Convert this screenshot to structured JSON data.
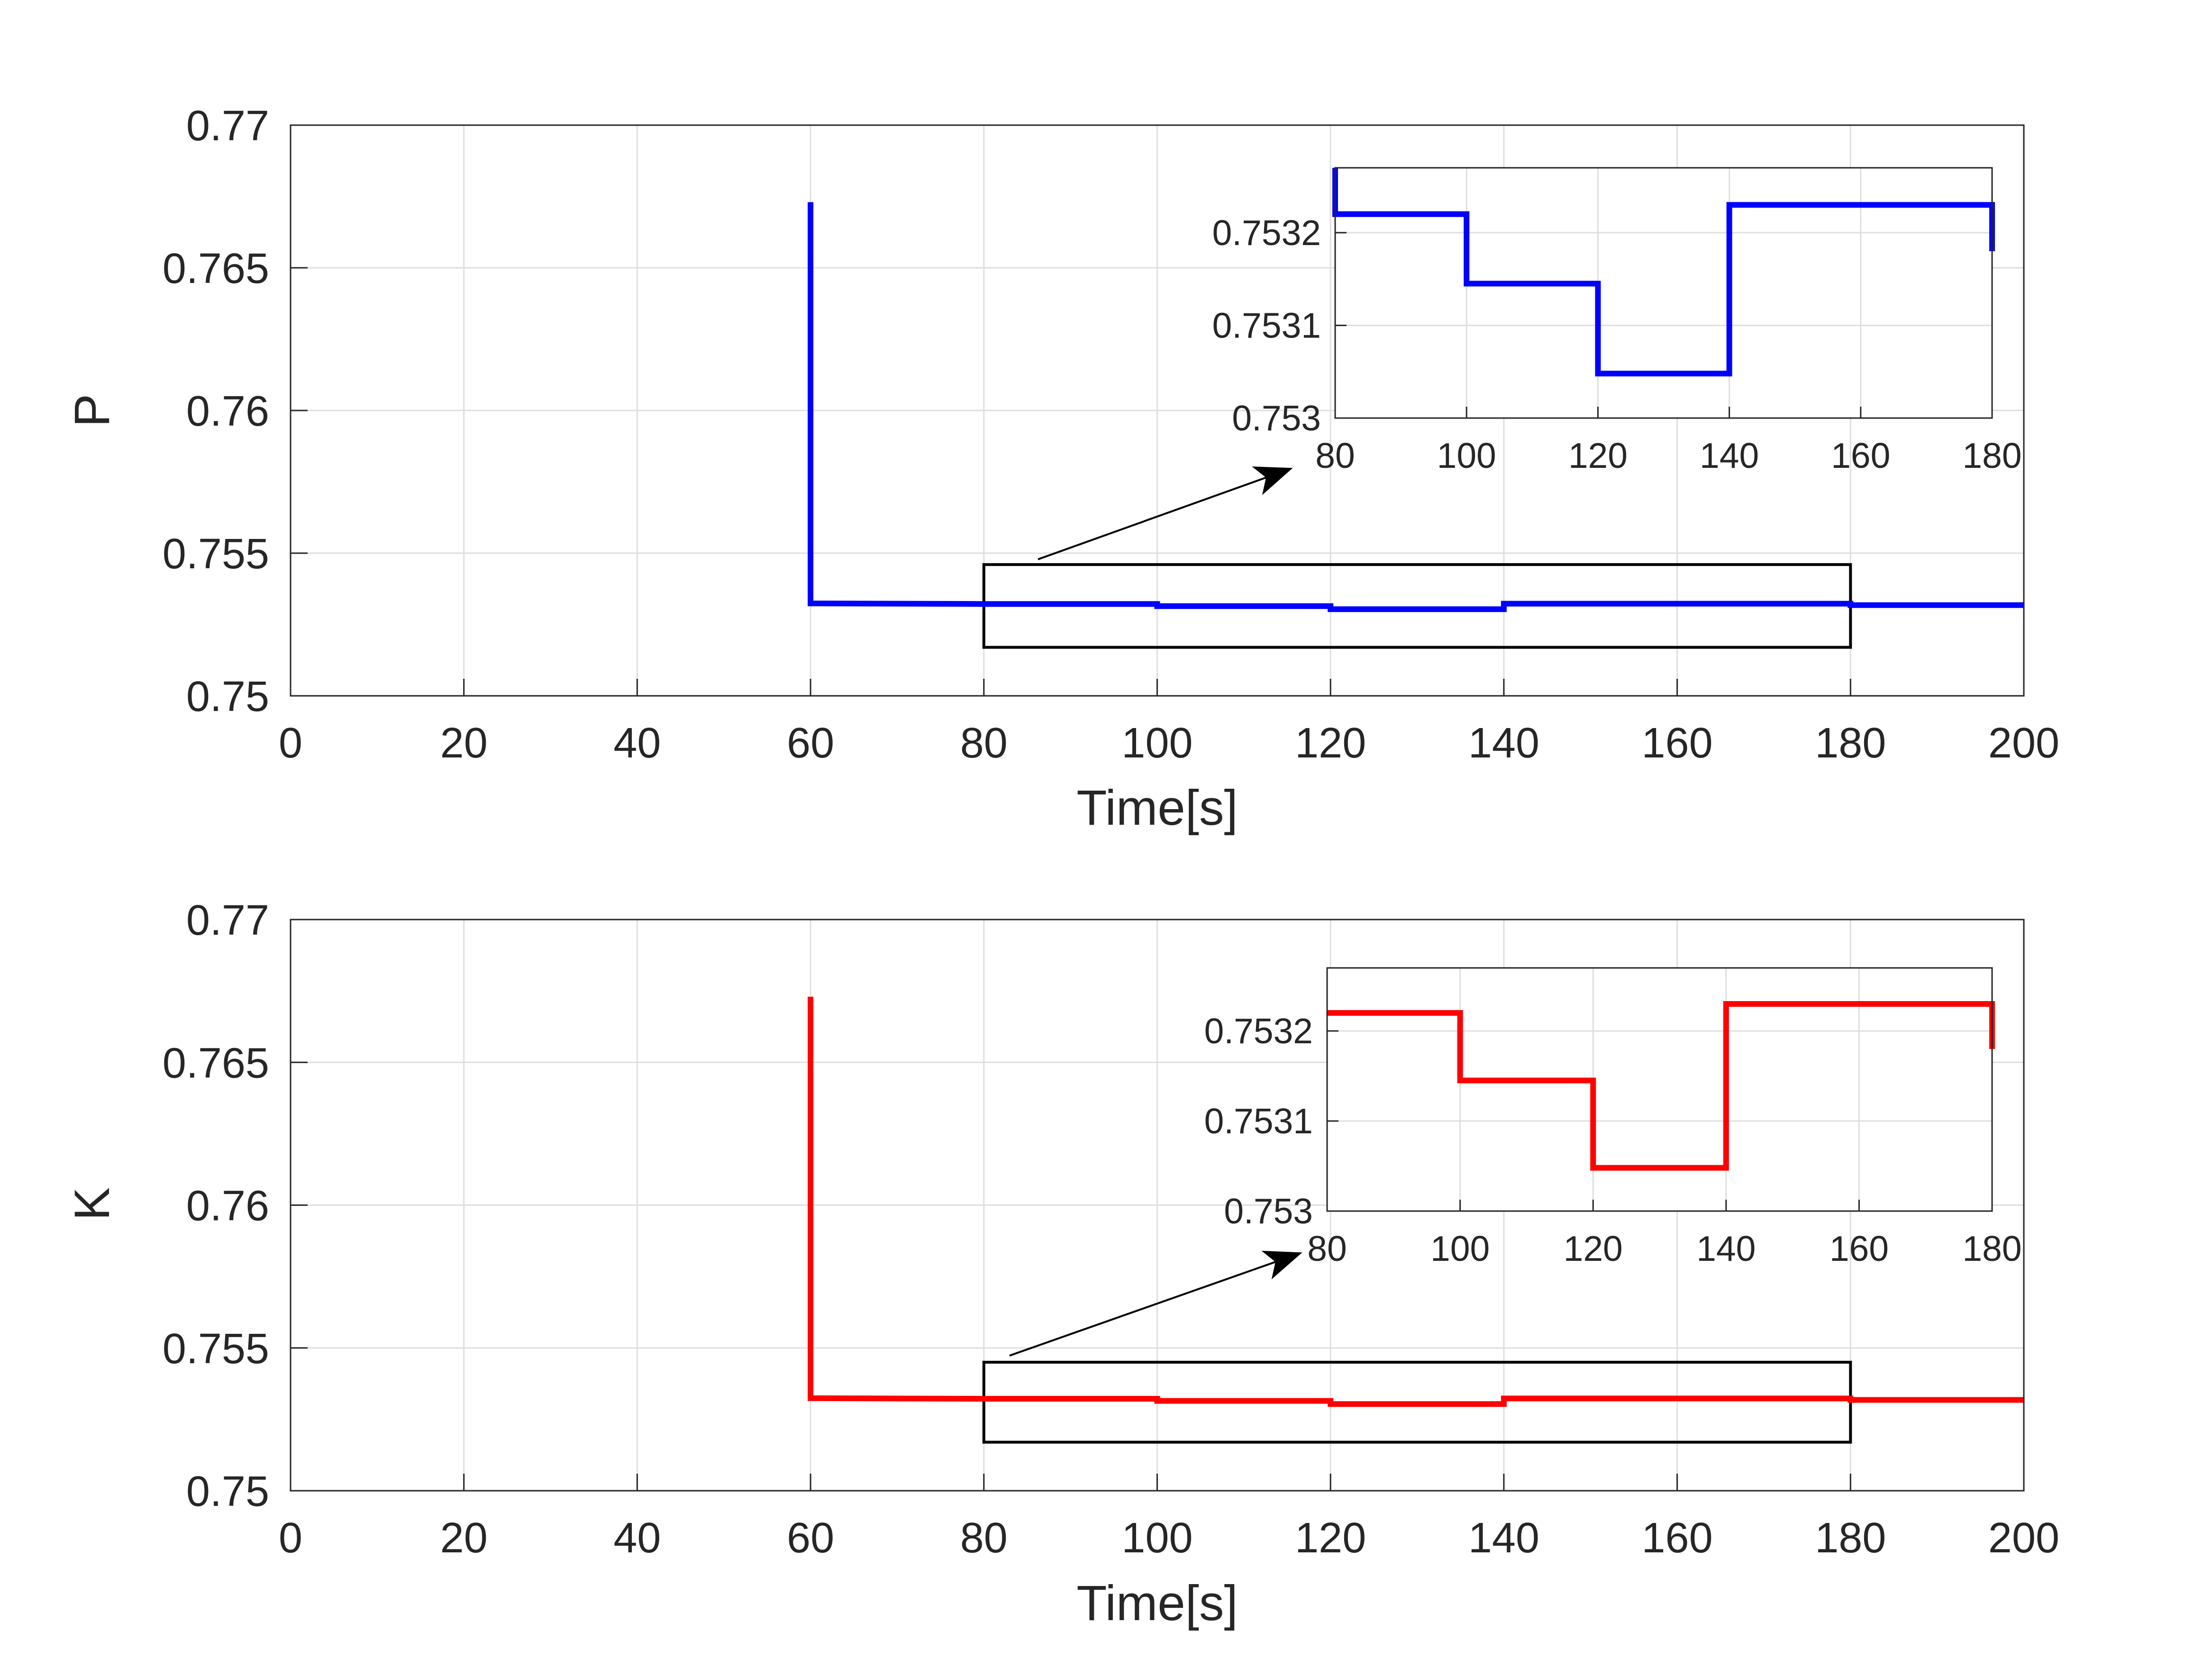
{
  "chart_data": [
    {
      "type": "line",
      "ylabel": "P",
      "xlabel": "Time[s]",
      "xlim": [
        0,
        200
      ],
      "ylim": [
        0.75,
        0.77
      ],
      "xticks": [
        "0",
        "20",
        "40",
        "60",
        "80",
        "100",
        "120",
        "140",
        "160",
        "180",
        "200"
      ],
      "yticks": [
        "0.75",
        "0.755",
        "0.76",
        "0.765",
        "0.77"
      ],
      "grid": true,
      "color": "#0000ff",
      "series": [
        {
          "name": "P",
          "x": [
            60,
            60,
            80,
            100,
            100,
            120,
            120,
            140,
            140,
            180,
            180,
            200
          ],
          "y": [
            0.7673,
            0.75324,
            0.75322,
            0.75322,
            0.753145,
            0.753145,
            0.753035,
            0.753035,
            0.75323,
            0.75323,
            0.75318,
            0.75318
          ]
        }
      ],
      "zoom_box": {
        "x": [
          80,
          180
        ],
        "y": [
          0.7517,
          0.7546
        ]
      },
      "inset": {
        "xlim": [
          80,
          180
        ],
        "ylim": [
          0.753,
          0.75327
        ],
        "xticks": [
          "80",
          "100",
          "120",
          "140",
          "160",
          "180"
        ],
        "yticks": [
          "0.753",
          "0.7531",
          "0.7532"
        ],
        "series_x": [
          80,
          80,
          100,
          100,
          120,
          120,
          140,
          140,
          180,
          180
        ],
        "series_y": [
          0.75327,
          0.75322,
          0.75322,
          0.753145,
          0.753145,
          0.753048,
          0.753048,
          0.75323,
          0.75323,
          0.75318
        ]
      }
    },
    {
      "type": "line",
      "ylabel": "K",
      "xlabel": "Time[s]",
      "xlim": [
        0,
        200
      ],
      "ylim": [
        0.75,
        0.77
      ],
      "xticks": [
        "0",
        "20",
        "40",
        "60",
        "80",
        "100",
        "120",
        "140",
        "160",
        "180",
        "200"
      ],
      "yticks": [
        "0.75",
        "0.755",
        "0.76",
        "0.765",
        "0.77"
      ],
      "grid": true,
      "color": "#ff0000",
      "series": [
        {
          "name": "K",
          "x": [
            60,
            60,
            80,
            100,
            100,
            120,
            120,
            140,
            140,
            180,
            180,
            200
          ],
          "y": [
            0.7673,
            0.75324,
            0.75322,
            0.75322,
            0.753145,
            0.753145,
            0.753035,
            0.753035,
            0.75323,
            0.75323,
            0.75318,
            0.75318
          ]
        }
      ],
      "zoom_box": {
        "x": [
          80,
          180
        ],
        "y": [
          0.7517,
          0.7545
        ]
      },
      "inset": {
        "xlim": [
          80,
          180
        ],
        "ylim": [
          0.753,
          0.75327
        ],
        "xticks": [
          "80",
          "100",
          "120",
          "140",
          "160",
          "180"
        ],
        "yticks": [
          "0.753",
          "0.7531",
          "0.7532"
        ],
        "series_x": [
          80,
          100,
          100,
          120,
          120,
          140,
          140,
          180,
          180
        ],
        "series_y": [
          0.75322,
          0.75322,
          0.753145,
          0.753145,
          0.753048,
          0.753048,
          0.75323,
          0.75323,
          0.75318
        ]
      }
    }
  ]
}
